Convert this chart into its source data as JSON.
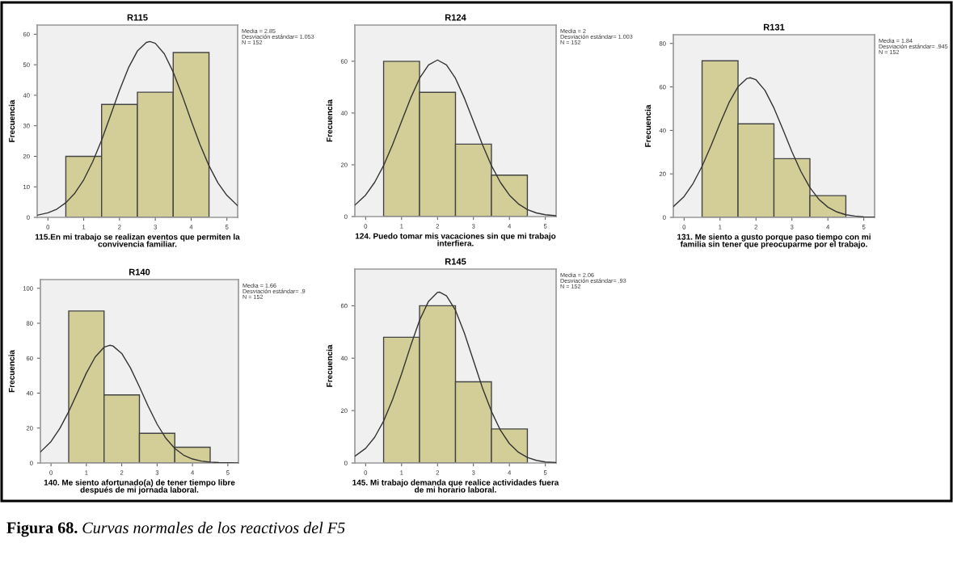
{
  "chart_data": [
    {
      "type": "histogram",
      "title": "R115",
      "xlabel": "115.En mi trabajo se realizan eventos que permiten la\nconvivencia familiar.",
      "ylabel": "Frecuencia",
      "bins": [
        0.5,
        1.5,
        2.5,
        3.5,
        4.5
      ],
      "values": [
        20,
        37,
        41,
        54
      ],
      "color": "#d3ce97",
      "xlim": [
        -0.3,
        5.3
      ],
      "ylim": [
        0,
        63
      ],
      "xticks": [
        0,
        1,
        2,
        3,
        4,
        5
      ],
      "yticks": [
        0,
        10,
        20,
        30,
        40,
        50,
        60
      ],
      "grid": false,
      "series": [
        {
          "type": "line",
          "color": "#333333",
          "x": [
            -0.3,
            0,
            0.25,
            0.5,
            0.75,
            1,
            1.25,
            1.5,
            1.75,
            2,
            2.25,
            2.5,
            2.75,
            2.85,
            3,
            3.25,
            3.5,
            3.75,
            4,
            4.25,
            4.5,
            4.75,
            5,
            5.3
          ],
          "values": [
            0.7,
            1.5,
            2.7,
            4.8,
            7.9,
            12.3,
            18.2,
            25.3,
            33.4,
            41.6,
            49.0,
            54.5,
            57.3,
            57.6,
            57.0,
            53.6,
            47.6,
            40.0,
            31.7,
            23.8,
            16.9,
            11.3,
            7.2,
            3.8
          ]
        }
      ],
      "annotations": [
        "Media = 2.85",
        "Desviación estándar= 1.053",
        "N = 152"
      ]
    },
    {
      "type": "histogram",
      "title": "R124",
      "xlabel": "124. Puedo tomar mis vacaciones sin que mi trabajo\ninterfiera.",
      "ylabel": "Frecuencia",
      "bins": [
        0.5,
        1.5,
        2.5,
        3.5,
        4.5
      ],
      "values": [
        60,
        48,
        28,
        16
      ],
      "color": "#d3ce97",
      "xlim": [
        -0.3,
        5.3
      ],
      "ylim": [
        0,
        74
      ],
      "xticks": [
        0,
        1,
        2,
        3,
        4,
        5
      ],
      "yticks": [
        0,
        20,
        40,
        60
      ],
      "grid": false,
      "series": [
        {
          "type": "line",
          "color": "#333333",
          "x": [
            -0.3,
            0,
            0.25,
            0.5,
            0.75,
            1,
            1.25,
            1.5,
            1.75,
            2,
            2.25,
            2.5,
            2.75,
            3,
            3.25,
            3.5,
            3.75,
            4,
            4.25,
            4.5,
            4.75,
            5,
            5.3
          ],
          "values": [
            4.4,
            8.3,
            13.2,
            19.7,
            27.8,
            36.8,
            45.7,
            53.4,
            58.6,
            60.5,
            58.6,
            53.4,
            45.7,
            36.8,
            27.8,
            19.7,
            13.2,
            8.3,
            4.9,
            2.7,
            1.4,
            0.7,
            0.3
          ]
        }
      ],
      "annotations": [
        "Media = 2",
        "Desviación estándar= 1.003",
        "N = 152"
      ]
    },
    {
      "type": "histogram",
      "title": "R131",
      "xlabel": "131. Me siento a gusto porque paso tiempo con mi\nfamilia sin tener que preocuparme por el trabajo.",
      "ylabel": "Frecuencia",
      "bins": [
        0.5,
        1.5,
        2.5,
        3.5,
        4.5
      ],
      "values": [
        72,
        43,
        27,
        10
      ],
      "color": "#d3ce97",
      "xlim": [
        -0.3,
        5.3
      ],
      "ylim": [
        0,
        84
      ],
      "xticks": [
        0,
        1,
        2,
        3,
        4,
        5
      ],
      "yticks": [
        0,
        20,
        40,
        60,
        80
      ],
      "grid": false,
      "series": [
        {
          "type": "line",
          "color": "#333333",
          "x": [
            -0.3,
            0,
            0.25,
            0.5,
            0.75,
            1,
            1.25,
            1.5,
            1.75,
            1.84,
            2,
            2.25,
            2.5,
            2.75,
            3,
            3.25,
            3.5,
            3.75,
            4,
            4.25,
            4.5,
            4.75,
            5,
            5.3
          ],
          "values": [
            4.9,
            9.6,
            15.6,
            23.5,
            33.0,
            43.2,
            52.8,
            60.1,
            63.9,
            64.2,
            63.3,
            58.4,
            50.3,
            40.4,
            30.2,
            21.1,
            13.7,
            8.3,
            4.7,
            2.5,
            1.2,
            0.6,
            0.2,
            0.1
          ]
        }
      ],
      "annotations": [
        "Media = 1.84",
        "Desviación estándar= .945",
        "N = 152"
      ]
    },
    {
      "type": "histogram",
      "title": "R140",
      "xlabel": "140. Me siento afortunado(a) de tener tiempo libre\ndespués de mi jornada laboral.",
      "ylabel": "Frecuencia",
      "bins": [
        0.5,
        1.5,
        2.5,
        3.5,
        4.5
      ],
      "values": [
        87,
        39,
        17,
        9
      ],
      "color": "#d3ce97",
      "xlim": [
        -0.3,
        5.3
      ],
      "ylim": [
        0,
        105
      ],
      "xticks": [
        0,
        1,
        2,
        3,
        4,
        5
      ],
      "yticks": [
        0,
        20,
        40,
        60,
        80,
        100
      ],
      "grid": false,
      "series": [
        {
          "type": "line",
          "color": "#333333",
          "x": [
            -0.3,
            0,
            0.25,
            0.5,
            0.75,
            1,
            1.25,
            1.5,
            1.66,
            1.75,
            2,
            2.25,
            2.5,
            2.75,
            3,
            3.25,
            3.5,
            3.75,
            4,
            4.25,
            4.5,
            4.75,
            5,
            5.3
          ],
          "values": [
            6.3,
            12.3,
            19.8,
            29.4,
            40.4,
            51.5,
            60.7,
            66.3,
            67.4,
            67.0,
            62.7,
            54.3,
            43.6,
            32.4,
            22.2,
            14.1,
            8.3,
            4.5,
            2.3,
            1.1,
            0.5,
            0.2,
            0.1,
            0.0
          ]
        }
      ],
      "annotations": [
        "Media = 1.66",
        "Desviación estándar= .9",
        "N = 152"
      ]
    },
    {
      "type": "histogram",
      "title": "R145",
      "xlabel": "145. Mi trabajo demanda que realice actividades fuera\nde mi horario laboral.",
      "ylabel": "Frecuencia",
      "bins": [
        0.5,
        1.5,
        2.5,
        3.5,
        4.5
      ],
      "values": [
        48,
        60,
        31,
        13
      ],
      "color": "#d3ce97",
      "xlim": [
        -0.3,
        5.3
      ],
      "ylim": [
        0,
        74
      ],
      "xticks": [
        0,
        1,
        2,
        3,
        4,
        5
      ],
      "yticks": [
        0,
        20,
        40,
        60
      ],
      "grid": false,
      "series": [
        {
          "type": "line",
          "color": "#333333",
          "x": [
            -0.3,
            0,
            0.25,
            0.5,
            0.75,
            1,
            1.25,
            1.5,
            1.75,
            2,
            2.06,
            2.25,
            2.5,
            2.75,
            3,
            3.25,
            3.5,
            3.75,
            4,
            4.25,
            4.5,
            4.75,
            5,
            5.3
          ],
          "values": [
            2.6,
            5.6,
            9.8,
            16.0,
            24.2,
            34.0,
            44.6,
            54.4,
            61.7,
            65.1,
            65.2,
            63.8,
            58.3,
            49.5,
            39.1,
            28.7,
            19.7,
            12.5,
            7.4,
            4.1,
            2.1,
            1.0,
            0.4,
            0.2
          ]
        }
      ],
      "annotations": [
        "Media = 2.06",
        "Desviación estándar= .93",
        "N = 152",
        "Figura 68. Curvas normales de los reactivos del F5"
      ]
    }
  ]
}
